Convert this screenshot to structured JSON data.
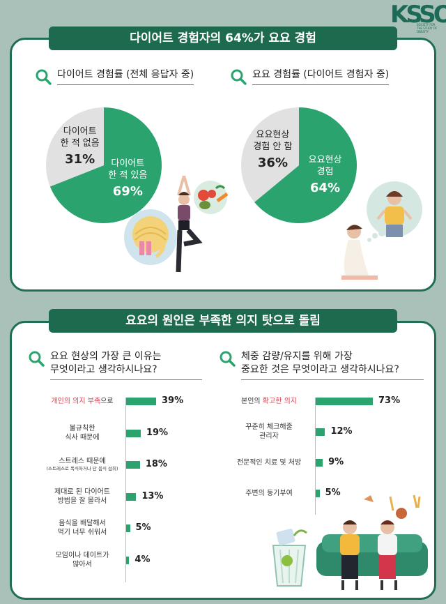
{
  "logo": {
    "mark": "KSSO",
    "sub": "KOREAN SOCIETY FOR THE STUDY OF OBESITY"
  },
  "section1": {
    "banner": "다이어트 경험자의 64%가 요요 경험",
    "left_question": "다이어트 경험률 (전체 응답자 중)",
    "right_question": "요요 경험률 (다이어트 경험자 중)"
  },
  "section2": {
    "banner": "요요의 원인은 부족한 의지 탓으로 돌림",
    "left_question": [
      "요요 현상의 가장 큰 이유는",
      "무엇이라고 생각하시나요?"
    ],
    "right_question": [
      "체중 감량/유지를 위해 가장",
      "중요한 것은 무엇이라고 생각하시나요?"
    ]
  },
  "colors": {
    "accent": "#2aa36f",
    "highlight": "#d83b4b",
    "grey": "#e1e1e1",
    "banner": "#1d6a4f"
  },
  "icons": [
    "search-icon",
    "yoga-woman-illustration",
    "exercise-ball-illustration",
    "vegetables-illustration",
    "thinking-woman-illustration",
    "diet-trash-can-illustration",
    "couple-eating-illustration"
  ],
  "chart_data": [
    {
      "type": "pie",
      "title": "다이어트 경험률 (전체 응답자 중)",
      "slices": [
        {
          "label": "다이어트\n한 적 있음",
          "value": 69,
          "value_label": "69%",
          "color": "#2aa36f"
        },
        {
          "label": "다이어트\n한 적 없음",
          "value": 31,
          "value_label": "31%",
          "color": "#e1e1e1"
        }
      ]
    },
    {
      "type": "pie",
      "title": "요요 경험률 (다이어트 경험자 중)",
      "slices": [
        {
          "label": "요요현상\n경험",
          "value": 64,
          "value_label": "64%",
          "color": "#2aa36f"
        },
        {
          "label": "요요현상\n경험 안 함",
          "value": 36,
          "value_label": "36%",
          "color": "#e1e1e1"
        }
      ]
    },
    {
      "type": "bar",
      "orientation": "horizontal",
      "title": "요요 현상의 가장 큰 이유는 무엇이라고 생각하시나요?",
      "categories": [
        {
          "parts": [
            {
              "t": "개인의 의지 부족",
              "hl": true
            },
            {
              "t": "으로",
              "hl": false
            }
          ],
          "lines": []
        },
        {
          "parts": [],
          "lines": [
            "불규칙한",
            "식사 때문에"
          ]
        },
        {
          "parts": [],
          "lines": [
            "스트레스 때문에"
          ],
          "note": "(스트레스로 폭식하거나 단 음식 섭취)"
        },
        {
          "parts": [],
          "lines": [
            "제대로 된 다이어트",
            "방법을 잘 몰라서"
          ]
        },
        {
          "parts": [],
          "lines": [
            "음식을 배달해서",
            "먹기 너무 쉬워서"
          ]
        },
        {
          "parts": [],
          "lines": [
            "모임이나 데이트가",
            "많아서"
          ]
        }
      ],
      "values": [
        39,
        19,
        18,
        13,
        5,
        4
      ],
      "value_labels": [
        "39%",
        "19%",
        "18%",
        "13%",
        "5%",
        "4%"
      ]
    },
    {
      "type": "bar",
      "orientation": "horizontal",
      "title": "체중 감량/유지를 위해 가장 중요한 것은 무엇이라고 생각하시나요?",
      "categories": [
        {
          "parts": [
            {
              "t": "본인의 ",
              "hl": false
            },
            {
              "t": "확고한 의지",
              "hl": true
            }
          ],
          "lines": []
        },
        {
          "parts": [],
          "lines": [
            "꾸준히 체크해줄",
            "관리자"
          ]
        },
        {
          "parts": [],
          "lines": [
            "전문적인 치료 및 처방"
          ]
        },
        {
          "parts": [],
          "lines": [
            "주변의 동기부여"
          ]
        }
      ],
      "values": [
        73,
        12,
        9,
        5
      ],
      "value_labels": [
        "73%",
        "12%",
        "9%",
        "5%"
      ]
    }
  ]
}
